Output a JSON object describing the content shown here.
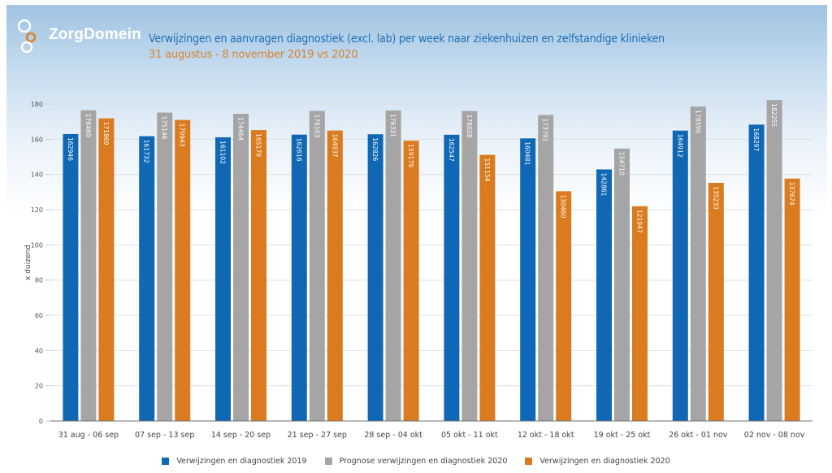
{
  "brand": {
    "name": "ZorgDomein"
  },
  "header": {
    "title": "Verwijzingen en aanvragen diagnostiek (excl. lab) per week naar ziekenhuizen en zelfstandige klinieken",
    "subtitle": "31 augustus - 8 november 2019 vs 2020"
  },
  "colors": {
    "title": "#1f6fb5",
    "subtitle": "#d9822b"
  },
  "chart_data": {
    "type": "bar",
    "title": "Verwijzingen en aanvragen diagnostiek (excl. lab) per week naar ziekenhuizen en zelfstandige klinieken",
    "subtitle": "31 augustus - 8 november 2019 vs 2020",
    "xlabel": "",
    "ylabel": "x duizend",
    "ylim": [
      0,
      180
    ],
    "yticks": [
      0,
      20,
      40,
      60,
      80,
      100,
      120,
      140,
      160,
      180
    ],
    "grid": true,
    "legend_position": "bottom",
    "categories": [
      "31 aug - 06 sep",
      "07 sep - 13 sep",
      "14 sep - 20 sep",
      "21 sep - 27 sep",
      "28 sep - 04 okt",
      "05 okt - 11 okt",
      "12 okt - 18 okt",
      "19 okt - 25 okt",
      "26 okt - 01 nov",
      "02 nov - 08 nov"
    ],
    "series": [
      {
        "name": "Verwijzingen en diagnostiek 2019",
        "color": "#1068b4",
        "values": [
          162946,
          161732,
          161102,
          162616,
          162826,
          162547,
          160481,
          142861,
          164912,
          168297
        ]
      },
      {
        "name": "Prognose verwijzingen en diagnostiek 2020",
        "color": "#a5a5a5",
        "values": [
          176460,
          175146,
          174464,
          176103,
          176331,
          176028,
          173791,
          154710,
          178590,
          182255
        ]
      },
      {
        "name": "Verwijzingen en diagnostiek 2020",
        "color": "#d97b1e",
        "values": [
          171869,
          170943,
          165179,
          164937,
          159179,
          151154,
          130460,
          121947,
          135233,
          137674
        ]
      }
    ],
    "value_scale": 1000
  }
}
